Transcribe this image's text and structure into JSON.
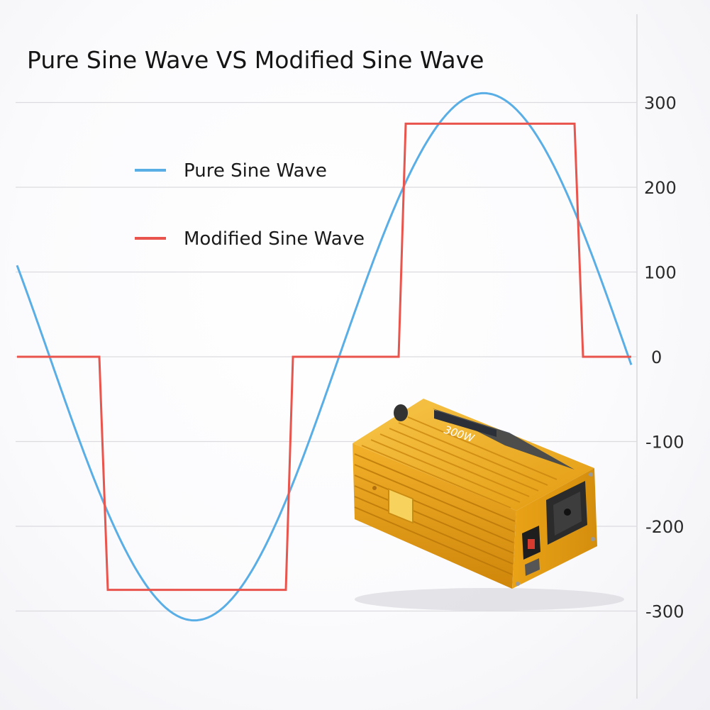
{
  "chart_data": {
    "type": "line",
    "title": "Pure Sine Wave VS Modified Sine Wave",
    "xlabel": "",
    "ylabel": "",
    "ylim": [
      -400,
      400
    ],
    "grid": true,
    "legend_position": "top-left",
    "y_axis_side": "right",
    "yticks": [
      300,
      200,
      100,
      0,
      -100,
      -200,
      -300
    ],
    "ytick_labels": [
      "300",
      "200",
      "100",
      "0",
      "-100",
      "-200",
      "-300"
    ],
    "series": [
      {
        "name": "Pure Sine Wave",
        "color": "#5aaee6",
        "style": "sine",
        "amplitude": 311,
        "values_sampled": [
          104,
          0,
          -220,
          -311,
          -220,
          0,
          220,
          311,
          220,
          0
        ]
      },
      {
        "name": "Modified Sine Wave",
        "color": "#e9544c",
        "style": "step",
        "values": [
          0,
          -275,
          0,
          275,
          0
        ]
      }
    ]
  },
  "product_image": {
    "description_icon": "power-inverter-icon",
    "label_text": "300W",
    "body_color": "#f2a91e"
  }
}
